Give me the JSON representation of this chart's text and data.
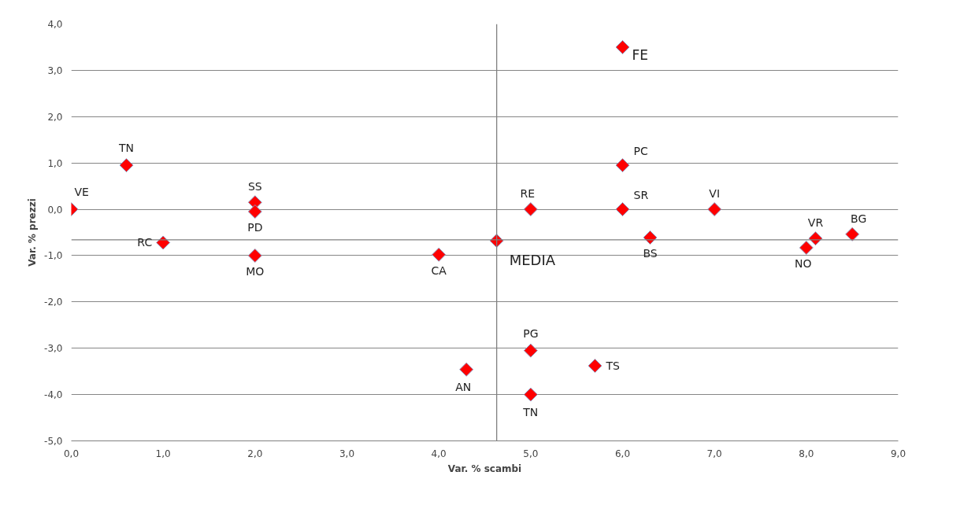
{
  "chart_data": {
    "type": "scatter",
    "xlabel": "Var. % scambi",
    "ylabel": "Var. % prezzi",
    "x": [
      6.0,
      0.6,
      0.0,
      2.0,
      2.0,
      1.0,
      2.0,
      4.0,
      4.63,
      5.0,
      6.0,
      6.0,
      7.0,
      6.3,
      8.0,
      8.1,
      8.5,
      5.0,
      5.7,
      4.3,
      5.0
    ],
    "series": [
      {
        "color": "#ff0000",
        "values": [
          3.5,
          0.95,
          0.0,
          0.15,
          -0.05,
          -0.72,
          -1.0,
          -0.98,
          -0.68,
          0.0,
          0.0,
          0.95,
          0.0,
          -0.61,
          -0.83,
          -0.63,
          -0.54,
          -3.05,
          -3.38,
          -3.46,
          -4.0
        ],
        "value_labels": [
          "FE",
          "TN",
          "VE",
          "SS",
          "PD",
          "RC",
          "MO",
          "CA",
          "MEDIA",
          "RE",
          "SR",
          "PC",
          "VI",
          "BS",
          "NO",
          "VR",
          "BG",
          "PG",
          "TS",
          "AN",
          "TN"
        ]
      }
    ],
    "xlim": [
      0,
      9
    ],
    "ylim": [
      -5,
      4
    ],
    "xticks": [
      {
        "value": 0,
        "label": "0,0"
      },
      {
        "value": 1,
        "label": "1,0"
      },
      {
        "value": 2,
        "label": "2,0"
      },
      {
        "value": 3,
        "label": "3,0"
      },
      {
        "value": 4,
        "label": "4,0"
      },
      {
        "value": 5,
        "label": "5,0"
      },
      {
        "value": 6,
        "label": "6,0"
      },
      {
        "value": 7,
        "label": "7,0"
      },
      {
        "value": 8,
        "label": "8,0"
      },
      {
        "value": 9,
        "label": "9,0"
      }
    ],
    "yticks": [
      {
        "value": 4,
        "label": "4,0"
      },
      {
        "value": 3,
        "label": "3,0"
      },
      {
        "value": 2,
        "label": "2,0"
      },
      {
        "value": 1,
        "label": "1,0"
      },
      {
        "value": 0,
        "label": "0,0"
      },
      {
        "value": -1,
        "label": "-1,0"
      },
      {
        "value": -2,
        "label": "-2,0"
      },
      {
        "value": -3,
        "label": "-3,0"
      },
      {
        "value": -4,
        "label": "-4,0"
      },
      {
        "value": -5,
        "label": "-5,0"
      }
    ],
    "ref_lines": [
      {
        "axis": "x",
        "value": 4.63,
        "color": "#808080"
      },
      {
        "axis": "y",
        "value": -0.66,
        "color": "#808080"
      }
    ],
    "grid": "y",
    "marker": "diamond"
  }
}
